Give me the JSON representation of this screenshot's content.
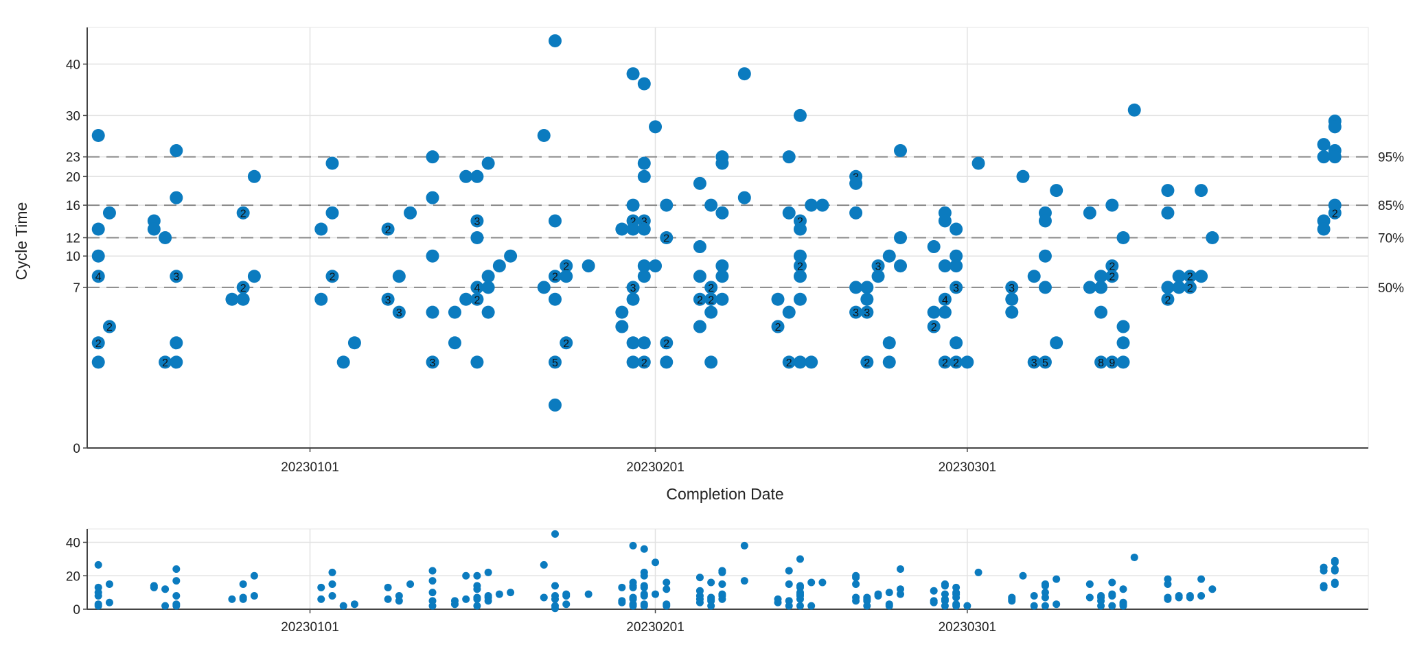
{
  "chart_data": {
    "type": "scatter",
    "xlabel": "Completion Date",
    "ylabel": "Cycle Time",
    "x_ticks": [
      {
        "date": "2023-01-01",
        "label": "20230101"
      },
      {
        "date": "2023-02-01",
        "label": "20230201"
      },
      {
        "date": "2023-03-01",
        "label": "20230301"
      }
    ],
    "y_ticks": [
      0,
      7,
      10,
      12,
      16,
      20,
      23,
      30,
      40
    ],
    "y_scale": "square-root",
    "ylim": [
      0,
      48
    ],
    "xlim": [
      "2022-12-12",
      "2023-04-06"
    ],
    "marker_color": "#0b7bbf",
    "percentiles": [
      {
        "label": "50%",
        "value": 7
      },
      {
        "label": "70%",
        "value": 12
      },
      {
        "label": "85%",
        "value": 16
      },
      {
        "label": "95%",
        "value": 23
      }
    ],
    "points": [
      {
        "x": "2022-12-13",
        "y": 26.5
      },
      {
        "x": "2022-12-13",
        "y": 13
      },
      {
        "x": "2022-12-13",
        "y": 10
      },
      {
        "x": "2022-12-13",
        "y": 8,
        "count": "4"
      },
      {
        "x": "2022-12-13",
        "y": 3,
        "count": "2"
      },
      {
        "x": "2022-12-13",
        "y": 2
      },
      {
        "x": "2022-12-14",
        "y": 15
      },
      {
        "x": "2022-12-14",
        "y": 4,
        "count": "2"
      },
      {
        "x": "2022-12-18",
        "y": 14
      },
      {
        "x": "2022-12-18",
        "y": 13
      },
      {
        "x": "2022-12-19",
        "y": 12
      },
      {
        "x": "2022-12-19",
        "y": 2,
        "count": "2"
      },
      {
        "x": "2022-12-20",
        "y": 24
      },
      {
        "x": "2022-12-20",
        "y": 17
      },
      {
        "x": "2022-12-20",
        "y": 8,
        "count": "3"
      },
      {
        "x": "2022-12-20",
        "y": 3
      },
      {
        "x": "2022-12-20",
        "y": 2
      },
      {
        "x": "2022-12-25",
        "y": 6
      },
      {
        "x": "2022-12-26",
        "y": 15,
        "count": "2"
      },
      {
        "x": "2022-12-26",
        "y": 7,
        "count": "2"
      },
      {
        "x": "2022-12-26",
        "y": 6
      },
      {
        "x": "2022-12-27",
        "y": 20
      },
      {
        "x": "2022-12-27",
        "y": 8
      },
      {
        "x": "2023-01-02",
        "y": 13
      },
      {
        "x": "2023-01-02",
        "y": 6
      },
      {
        "x": "2023-01-03",
        "y": 22
      },
      {
        "x": "2023-01-03",
        "y": 15
      },
      {
        "x": "2023-01-03",
        "y": 8,
        "count": "2"
      },
      {
        "x": "2023-01-04",
        "y": 2
      },
      {
        "x": "2023-01-05",
        "y": 3
      },
      {
        "x": "2023-01-08",
        "y": 13,
        "count": "2"
      },
      {
        "x": "2023-01-08",
        "y": 6,
        "count": "3"
      },
      {
        "x": "2023-01-09",
        "y": 8
      },
      {
        "x": "2023-01-09",
        "y": 5,
        "count": "3"
      },
      {
        "x": "2023-01-10",
        "y": 15
      },
      {
        "x": "2023-01-12",
        "y": 23
      },
      {
        "x": "2023-01-12",
        "y": 17
      },
      {
        "x": "2023-01-12",
        "y": 10
      },
      {
        "x": "2023-01-12",
        "y": 5
      },
      {
        "x": "2023-01-12",
        "y": 2,
        "count": "3"
      },
      {
        "x": "2023-01-14",
        "y": 5
      },
      {
        "x": "2023-01-14",
        "y": 3
      },
      {
        "x": "2023-01-15",
        "y": 20
      },
      {
        "x": "2023-01-15",
        "y": 6
      },
      {
        "x": "2023-01-16",
        "y": 20
      },
      {
        "x": "2023-01-16",
        "y": 14,
        "count": "3"
      },
      {
        "x": "2023-01-16",
        "y": 12
      },
      {
        "x": "2023-01-16",
        "y": 7,
        "count": "4"
      },
      {
        "x": "2023-01-16",
        "y": 6,
        "count": "2"
      },
      {
        "x": "2023-01-16",
        "y": 2
      },
      {
        "x": "2023-01-17",
        "y": 22
      },
      {
        "x": "2023-01-17",
        "y": 8
      },
      {
        "x": "2023-01-17",
        "y": 7
      },
      {
        "x": "2023-01-17",
        "y": 5
      },
      {
        "x": "2023-01-18",
        "y": 9
      },
      {
        "x": "2023-01-19",
        "y": 10
      },
      {
        "x": "2023-01-22",
        "y": 26.5
      },
      {
        "x": "2023-01-22",
        "y": 7
      },
      {
        "x": "2023-01-23",
        "y": 45
      },
      {
        "x": "2023-01-23",
        "y": 14
      },
      {
        "x": "2023-01-23",
        "y": 8,
        "count": "2"
      },
      {
        "x": "2023-01-23",
        "y": 6
      },
      {
        "x": "2023-01-23",
        "y": 2,
        "count": "5"
      },
      {
        "x": "2023-01-23",
        "y": 0.5
      },
      {
        "x": "2023-01-24",
        "y": 9,
        "count": "2"
      },
      {
        "x": "2023-01-24",
        "y": 8
      },
      {
        "x": "2023-01-24",
        "y": 3,
        "count": "2"
      },
      {
        "x": "2023-01-26",
        "y": 9
      },
      {
        "x": "2023-01-29",
        "y": 5
      },
      {
        "x": "2023-01-29",
        "y": 4
      },
      {
        "x": "2023-01-29",
        "y": 13
      },
      {
        "x": "2023-01-30",
        "y": 38
      },
      {
        "x": "2023-01-30",
        "y": 16
      },
      {
        "x": "2023-01-30",
        "y": 14,
        "count": "2"
      },
      {
        "x": "2023-01-30",
        "y": 13
      },
      {
        "x": "2023-01-30",
        "y": 7,
        "count": "3"
      },
      {
        "x": "2023-01-30",
        "y": 6
      },
      {
        "x": "2023-01-30",
        "y": 3
      },
      {
        "x": "2023-01-30",
        "y": 2
      },
      {
        "x": "2023-01-31",
        "y": 36
      },
      {
        "x": "2023-01-31",
        "y": 22
      },
      {
        "x": "2023-01-31",
        "y": 20
      },
      {
        "x": "2023-01-31",
        "y": 14,
        "count": "3"
      },
      {
        "x": "2023-01-31",
        "y": 13
      },
      {
        "x": "2023-01-31",
        "y": 9
      },
      {
        "x": "2023-01-31",
        "y": 8
      },
      {
        "x": "2023-01-31",
        "y": 3
      },
      {
        "x": "2023-01-31",
        "y": 2,
        "count": "2"
      },
      {
        "x": "2023-02-01",
        "y": 28
      },
      {
        "x": "2023-02-01",
        "y": 9
      },
      {
        "x": "2023-02-02",
        "y": 16
      },
      {
        "x": "2023-02-02",
        "y": 12,
        "count": "2"
      },
      {
        "x": "2023-02-02",
        "y": 3,
        "count": "2"
      },
      {
        "x": "2023-02-02",
        "y": 2
      },
      {
        "x": "2023-02-05",
        "y": 19
      },
      {
        "x": "2023-02-05",
        "y": 11
      },
      {
        "x": "2023-02-05",
        "y": 8
      },
      {
        "x": "2023-02-05",
        "y": 6,
        "count": "2"
      },
      {
        "x": "2023-02-05",
        "y": 4
      },
      {
        "x": "2023-02-06",
        "y": 16
      },
      {
        "x": "2023-02-06",
        "y": 7,
        "count": "2"
      },
      {
        "x": "2023-02-06",
        "y": 6,
        "count": "2"
      },
      {
        "x": "2023-02-06",
        "y": 5
      },
      {
        "x": "2023-02-06",
        "y": 2
      },
      {
        "x": "2023-02-07",
        "y": 23
      },
      {
        "x": "2023-02-07",
        "y": 22
      },
      {
        "x": "2023-02-07",
        "y": 15
      },
      {
        "x": "2023-02-07",
        "y": 9
      },
      {
        "x": "2023-02-07",
        "y": 8
      },
      {
        "x": "2023-02-07",
        "y": 6
      },
      {
        "x": "2023-02-09",
        "y": 38
      },
      {
        "x": "2023-02-09",
        "y": 17
      },
      {
        "x": "2023-02-12",
        "y": 6
      },
      {
        "x": "2023-02-12",
        "y": 4,
        "count": "2"
      },
      {
        "x": "2023-02-13",
        "y": 23
      },
      {
        "x": "2023-02-13",
        "y": 15
      },
      {
        "x": "2023-02-13",
        "y": 5
      },
      {
        "x": "2023-02-13",
        "y": 2,
        "count": "2"
      },
      {
        "x": "2023-02-14",
        "y": 30
      },
      {
        "x": "2023-02-14",
        "y": 14,
        "count": "2"
      },
      {
        "x": "2023-02-14",
        "y": 13
      },
      {
        "x": "2023-02-14",
        "y": 10
      },
      {
        "x": "2023-02-14",
        "y": 9,
        "count": "2"
      },
      {
        "x": "2023-02-14",
        "y": 8
      },
      {
        "x": "2023-02-14",
        "y": 6
      },
      {
        "x": "2023-02-14",
        "y": 2
      },
      {
        "x": "2023-02-15",
        "y": 16
      },
      {
        "x": "2023-02-15",
        "y": 2
      },
      {
        "x": "2023-02-16",
        "y": 16
      },
      {
        "x": "2023-02-19",
        "y": 20,
        "count": "3"
      },
      {
        "x": "2023-02-19",
        "y": 19
      },
      {
        "x": "2023-02-19",
        "y": 15
      },
      {
        "x": "2023-02-19",
        "y": 7
      },
      {
        "x": "2023-02-19",
        "y": 5,
        "count": "3"
      },
      {
        "x": "2023-02-20",
        "y": 7
      },
      {
        "x": "2023-02-20",
        "y": 6
      },
      {
        "x": "2023-02-20",
        "y": 5,
        "count": "3"
      },
      {
        "x": "2023-02-20",
        "y": 2,
        "count": "2"
      },
      {
        "x": "2023-02-21",
        "y": 9,
        "count": "3"
      },
      {
        "x": "2023-02-21",
        "y": 8
      },
      {
        "x": "2023-02-22",
        "y": 10
      },
      {
        "x": "2023-02-22",
        "y": 3
      },
      {
        "x": "2023-02-22",
        "y": 2
      },
      {
        "x": "2023-02-23",
        "y": 24
      },
      {
        "x": "2023-02-23",
        "y": 12
      },
      {
        "x": "2023-02-23",
        "y": 9
      },
      {
        "x": "2023-02-26",
        "y": 11
      },
      {
        "x": "2023-02-26",
        "y": 5
      },
      {
        "x": "2023-02-26",
        "y": 4,
        "count": "2"
      },
      {
        "x": "2023-02-27",
        "y": 15
      },
      {
        "x": "2023-02-27",
        "y": 14
      },
      {
        "x": "2023-02-27",
        "y": 9
      },
      {
        "x": "2023-02-27",
        "y": 6,
        "count": "4"
      },
      {
        "x": "2023-02-27",
        "y": 5
      },
      {
        "x": "2023-02-27",
        "y": 2,
        "count": "2"
      },
      {
        "x": "2023-02-28",
        "y": 13
      },
      {
        "x": "2023-02-28",
        "y": 10
      },
      {
        "x": "2023-02-28",
        "y": 9
      },
      {
        "x": "2023-02-28",
        "y": 7,
        "count": "3"
      },
      {
        "x": "2023-02-28",
        "y": 3
      },
      {
        "x": "2023-02-28",
        "y": 2,
        "count": "2"
      },
      {
        "x": "2023-03-01",
        "y": 2
      },
      {
        "x": "2023-03-02",
        "y": 22
      },
      {
        "x": "2023-03-05",
        "y": 7,
        "count": "3"
      },
      {
        "x": "2023-03-05",
        "y": 6
      },
      {
        "x": "2023-03-05",
        "y": 5
      },
      {
        "x": "2023-03-06",
        "y": 20
      },
      {
        "x": "2023-03-07",
        "y": 8
      },
      {
        "x": "2023-03-07",
        "y": 2,
        "count": "3"
      },
      {
        "x": "2023-03-08",
        "y": 15
      },
      {
        "x": "2023-03-08",
        "y": 14
      },
      {
        "x": "2023-03-08",
        "y": 10
      },
      {
        "x": "2023-03-08",
        "y": 7
      },
      {
        "x": "2023-03-08",
        "y": 2,
        "count": "5"
      },
      {
        "x": "2023-03-09",
        "y": 18
      },
      {
        "x": "2023-03-09",
        "y": 3
      },
      {
        "x": "2023-03-12",
        "y": 15
      },
      {
        "x": "2023-03-12",
        "y": 7
      },
      {
        "x": "2023-03-13",
        "y": 8
      },
      {
        "x": "2023-03-13",
        "y": 7
      },
      {
        "x": "2023-03-13",
        "y": 5
      },
      {
        "x": "2023-03-13",
        "y": 2,
        "count": "8"
      },
      {
        "x": "2023-03-14",
        "y": 16
      },
      {
        "x": "2023-03-14",
        "y": 9,
        "count": "2"
      },
      {
        "x": "2023-03-14",
        "y": 8,
        "count": "2"
      },
      {
        "x": "2023-03-14",
        "y": 2,
        "count": "9"
      },
      {
        "x": "2023-03-15",
        "y": 12
      },
      {
        "x": "2023-03-15",
        "y": 4
      },
      {
        "x": "2023-03-15",
        "y": 3
      },
      {
        "x": "2023-03-15",
        "y": 2
      },
      {
        "x": "2023-03-16",
        "y": 31
      },
      {
        "x": "2023-03-19",
        "y": 18
      },
      {
        "x": "2023-03-19",
        "y": 15
      },
      {
        "x": "2023-03-19",
        "y": 7
      },
      {
        "x": "2023-03-19",
        "y": 6,
        "count": "2"
      },
      {
        "x": "2023-03-20",
        "y": 8
      },
      {
        "x": "2023-03-20",
        "y": 7
      },
      {
        "x": "2023-03-21",
        "y": 8,
        "count": "2"
      },
      {
        "x": "2023-03-21",
        "y": 7,
        "count": "2"
      },
      {
        "x": "2023-03-22",
        "y": 18
      },
      {
        "x": "2023-03-22",
        "y": 8
      },
      {
        "x": "2023-03-23",
        "y": 12
      },
      {
        "x": "2023-04-02",
        "y": 25
      },
      {
        "x": "2023-04-02",
        "y": 23
      },
      {
        "x": "2023-04-02",
        "y": 14
      },
      {
        "x": "2023-04-02",
        "y": 13
      },
      {
        "x": "2023-04-03",
        "y": 29
      },
      {
        "x": "2023-04-03",
        "y": 28
      },
      {
        "x": "2023-04-03",
        "y": 24
      },
      {
        "x": "2023-04-03",
        "y": 23
      },
      {
        "x": "2023-04-03",
        "y": 16
      },
      {
        "x": "2023-04-03",
        "y": 15,
        "count": "2"
      }
    ],
    "overview": {
      "y_ticks": [
        0,
        20,
        40
      ],
      "ylim": [
        0,
        48
      ],
      "y_scale": "linear"
    }
  }
}
